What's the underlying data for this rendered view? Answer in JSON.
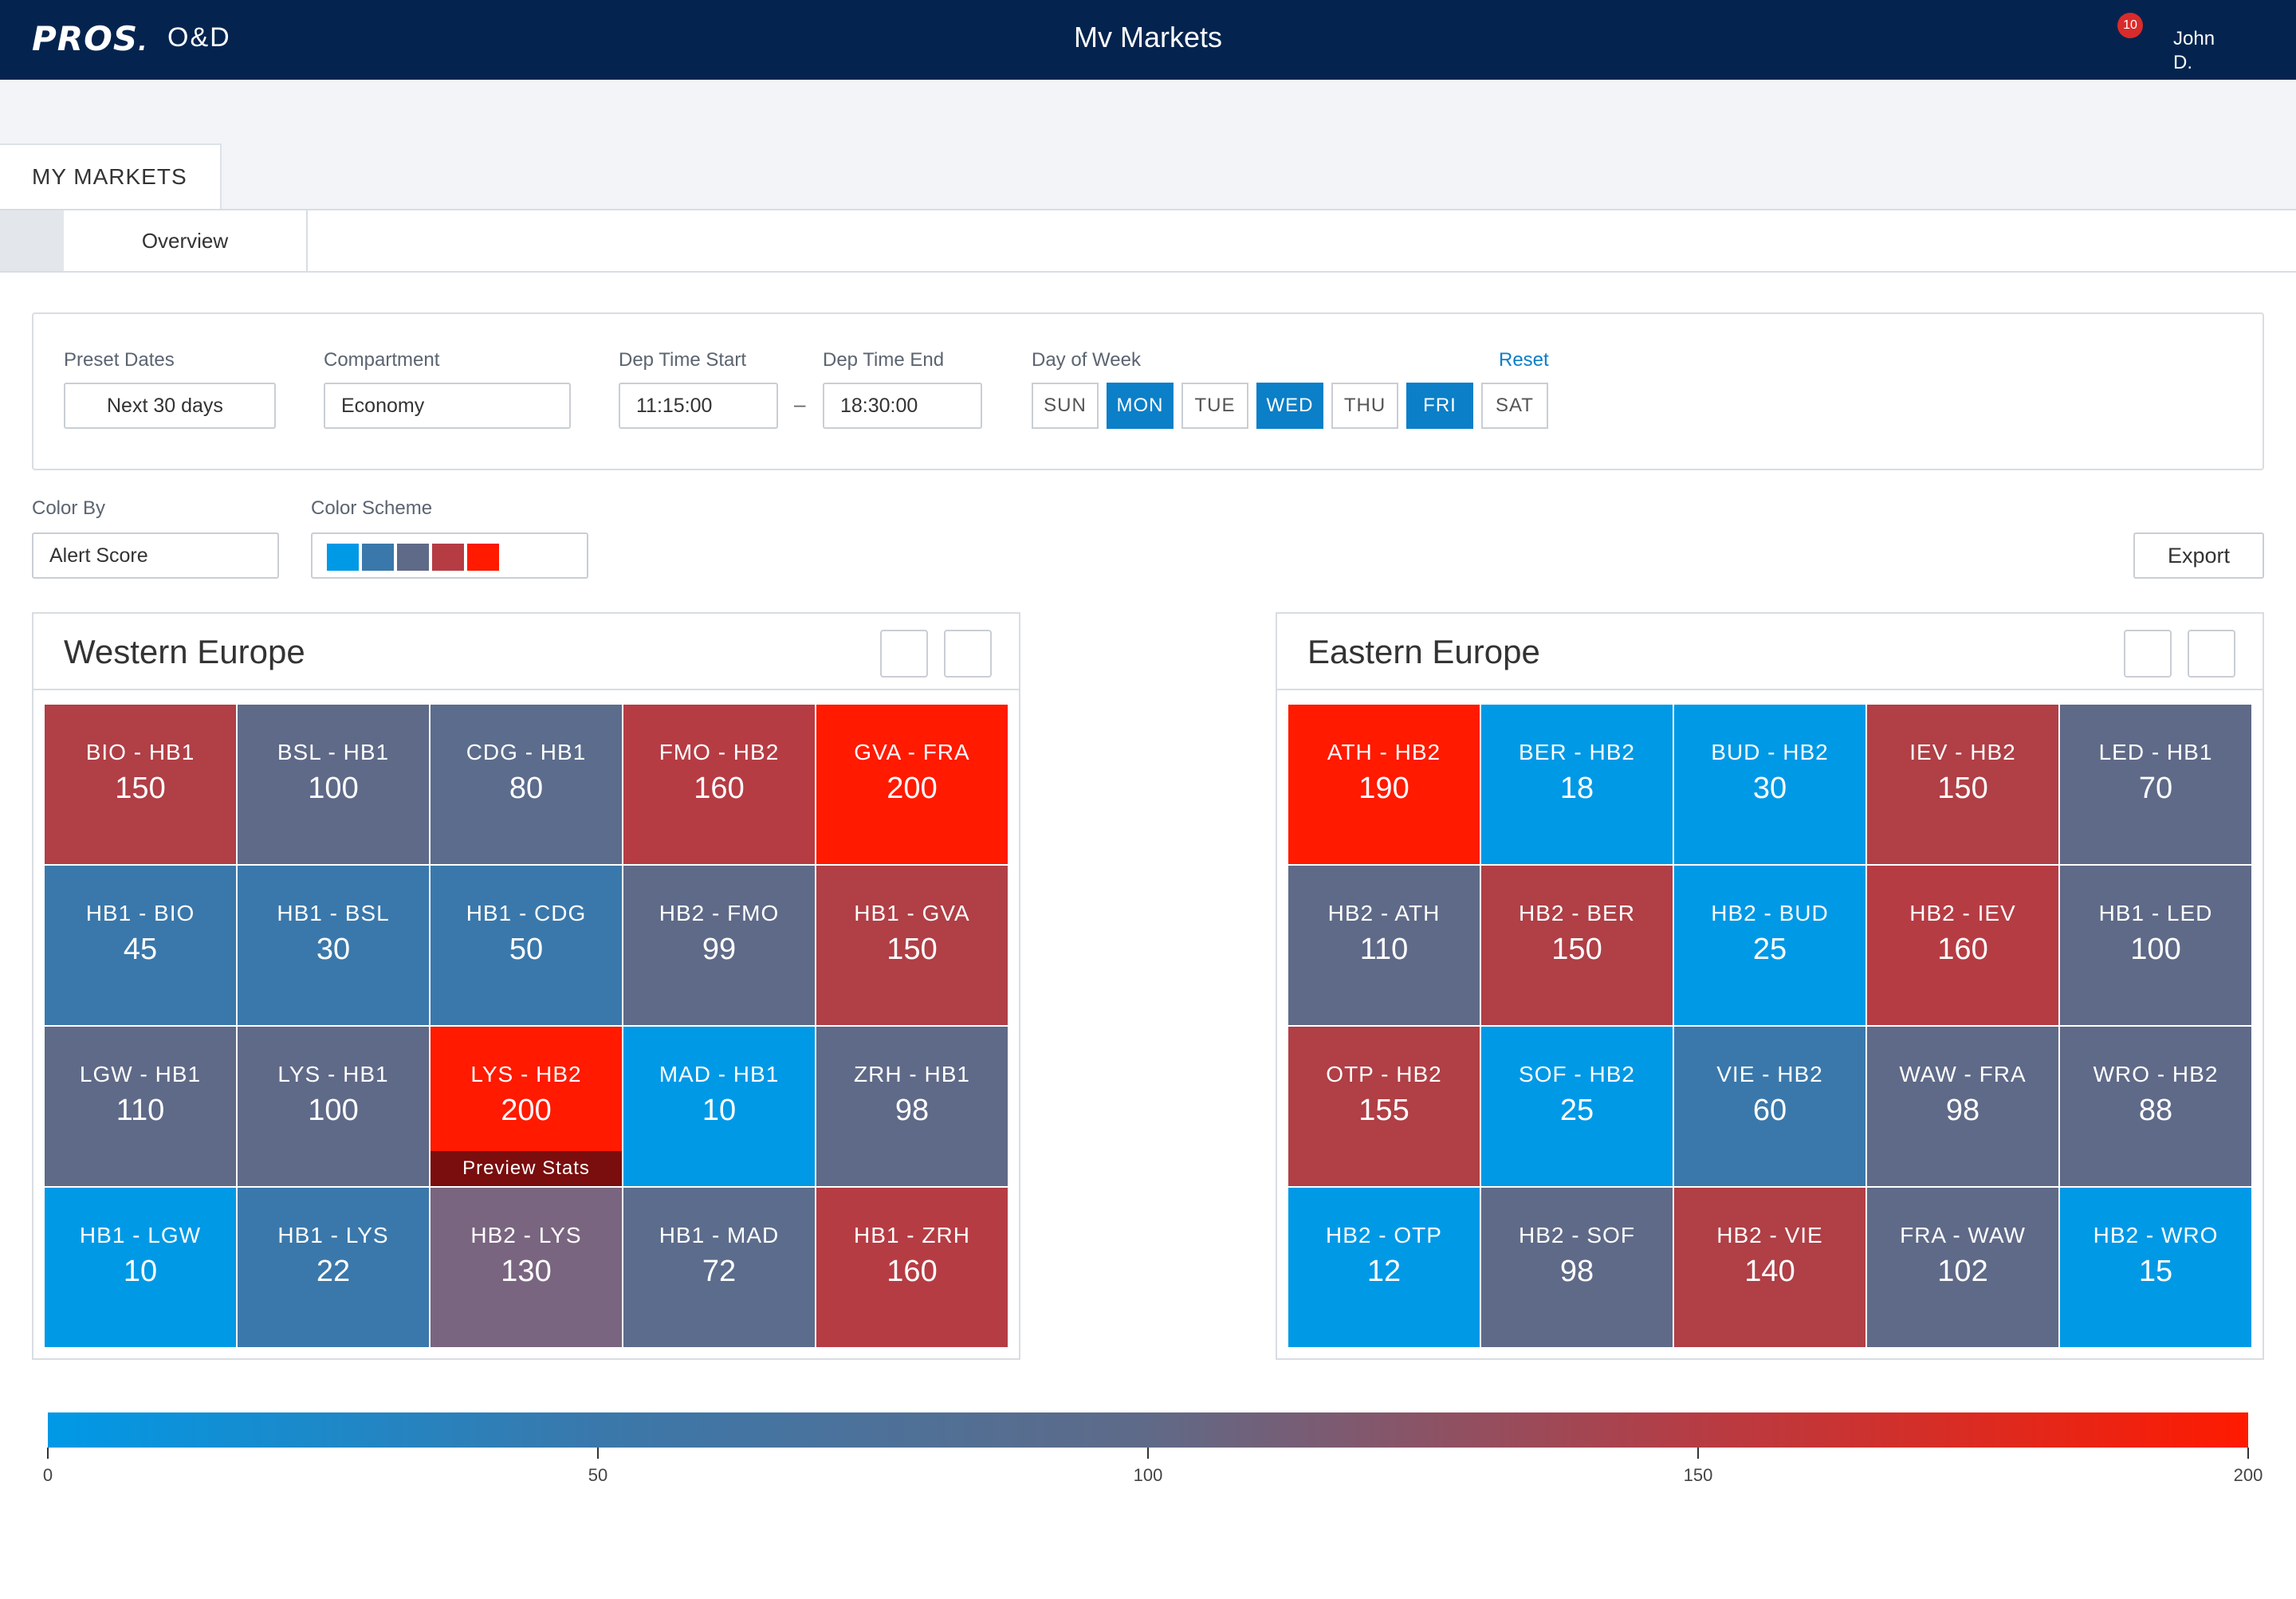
{
  "header": {
    "logo_text": "PROS",
    "logo_dot": ".",
    "app_name": "O&D",
    "title": "Mv Markets",
    "notification_count": "10",
    "user_name": "John D."
  },
  "tabs": {
    "main": "MY MARKETS",
    "sub": "Overview"
  },
  "filters": {
    "preset_dates": {
      "label": "Preset Dates",
      "value": "Next 30 days"
    },
    "compartment": {
      "label": "Compartment",
      "value": "Economy"
    },
    "dep_time_start": {
      "label": "Dep Time Start",
      "value": "11:15:00"
    },
    "dep_time_end": {
      "label": "Dep Time End",
      "value": "18:30:00"
    },
    "separator": "–",
    "day_of_week": {
      "label": "Day of Week",
      "days": [
        {
          "label": "SUN",
          "selected": false
        },
        {
          "label": "MON",
          "selected": true
        },
        {
          "label": "TUE",
          "selected": false
        },
        {
          "label": "WED",
          "selected": true
        },
        {
          "label": "THU",
          "selected": false
        },
        {
          "label": "FRI",
          "selected": true
        },
        {
          "label": "SAT",
          "selected": false
        }
      ]
    },
    "reset": "Reset"
  },
  "color_by": {
    "label": "Color By",
    "value": "Alert Score"
  },
  "color_scheme": {
    "label": "Color Scheme",
    "swatches": [
      "#0099e6",
      "#3a78ab",
      "#5f6a88",
      "#b63c44",
      "#ff1a00"
    ]
  },
  "export_label": "Export",
  "panels": [
    {
      "title": "Western Europe",
      "cells": [
        {
          "route": "BIO - HB1",
          "value": "150",
          "color": "#b03f46"
        },
        {
          "route": "BSL - HB1",
          "value": "100",
          "color": "#5f6a88"
        },
        {
          "route": "CDG - HB1",
          "value": "80",
          "color": "#5c6c8c"
        },
        {
          "route": "FMO - HB2",
          "value": "160",
          "color": "#b63c44"
        },
        {
          "route": "GVA - FRA",
          "value": "200",
          "color": "#ff1a00"
        },
        {
          "route": "HB1 - BIO",
          "value": "45",
          "color": "#3a78ab"
        },
        {
          "route": "HB1 - BSL",
          "value": "30",
          "color": "#3a78ab"
        },
        {
          "route": "HB1 - CDG",
          "value": "50",
          "color": "#3a78ab"
        },
        {
          "route": "HB2 - FMO",
          "value": "99",
          "color": "#5f6a88"
        },
        {
          "route": "HB1 - GVA",
          "value": "150",
          "color": "#b03f46"
        },
        {
          "route": "LGW - HB1",
          "value": "110",
          "color": "#5f6a88"
        },
        {
          "route": "LYS - HB1",
          "value": "100",
          "color": "#5f6a88"
        },
        {
          "route": "LYS - HB2",
          "value": "200",
          "color": "#ff1a00",
          "preview": "Preview Stats"
        },
        {
          "route": "MAD - HB1",
          "value": "10",
          "color": "#0099e6"
        },
        {
          "route": "ZRH - HB1",
          "value": "98",
          "color": "#5f6a88"
        },
        {
          "route": "HB1 - LGW",
          "value": "10",
          "color": "#0099e6"
        },
        {
          "route": "HB1 - LYS",
          "value": "22",
          "color": "#3a78ab"
        },
        {
          "route": "HB2 - LYS",
          "value": "130",
          "color": "#7a6580"
        },
        {
          "route": "HB1 - MAD",
          "value": "72",
          "color": "#5c6c8c"
        },
        {
          "route": "HB1 - ZRH",
          "value": "160",
          "color": "#b63c44"
        }
      ]
    },
    {
      "title": "Eastern Europe",
      "cells": [
        {
          "route": "ATH - HB2",
          "value": "190",
          "color": "#ff1a00"
        },
        {
          "route": "BER - HB2",
          "value": "18",
          "color": "#0099e6"
        },
        {
          "route": "BUD - HB2",
          "value": "30",
          "color": "#0099e6"
        },
        {
          "route": "IEV - HB2",
          "value": "150",
          "color": "#b03f46"
        },
        {
          "route": "LED - HB1",
          "value": "70",
          "color": "#5f6a88"
        },
        {
          "route": "HB2 - ATH",
          "value": "110",
          "color": "#5f6a88"
        },
        {
          "route": "HB2 - BER",
          "value": "150",
          "color": "#b03f46"
        },
        {
          "route": "HB2 - BUD",
          "value": "25",
          "color": "#0099e6"
        },
        {
          "route": "HB2 - IEV",
          "value": "160",
          "color": "#b63c44"
        },
        {
          "route": "HB1 - LED",
          "value": "100",
          "color": "#5f6a88"
        },
        {
          "route": "OTP - HB2",
          "value": "155",
          "color": "#b03f46"
        },
        {
          "route": "SOF - HB2",
          "value": "25",
          "color": "#0099e6"
        },
        {
          "route": "VIE - HB2",
          "value": "60",
          "color": "#3a78ab"
        },
        {
          "route": "WAW - FRA",
          "value": "98",
          "color": "#5f6a88"
        },
        {
          "route": "WRO - HB2",
          "value": "88",
          "color": "#5f6a88"
        },
        {
          "route": "HB2 - OTP",
          "value": "12",
          "color": "#0099e6"
        },
        {
          "route": "HB2 - SOF",
          "value": "98",
          "color": "#5f6a88"
        },
        {
          "route": "HB2 - VIE",
          "value": "140",
          "color": "#b03f46"
        },
        {
          "route": "FRA - WAW",
          "value": "102",
          "color": "#5f6a88"
        },
        {
          "route": "HB2 - WRO",
          "value": "15",
          "color": "#0099e6"
        }
      ]
    }
  ],
  "legend": {
    "ticks": [
      "0",
      "50",
      "100",
      "150",
      "200"
    ],
    "min": 0,
    "max": 200
  }
}
